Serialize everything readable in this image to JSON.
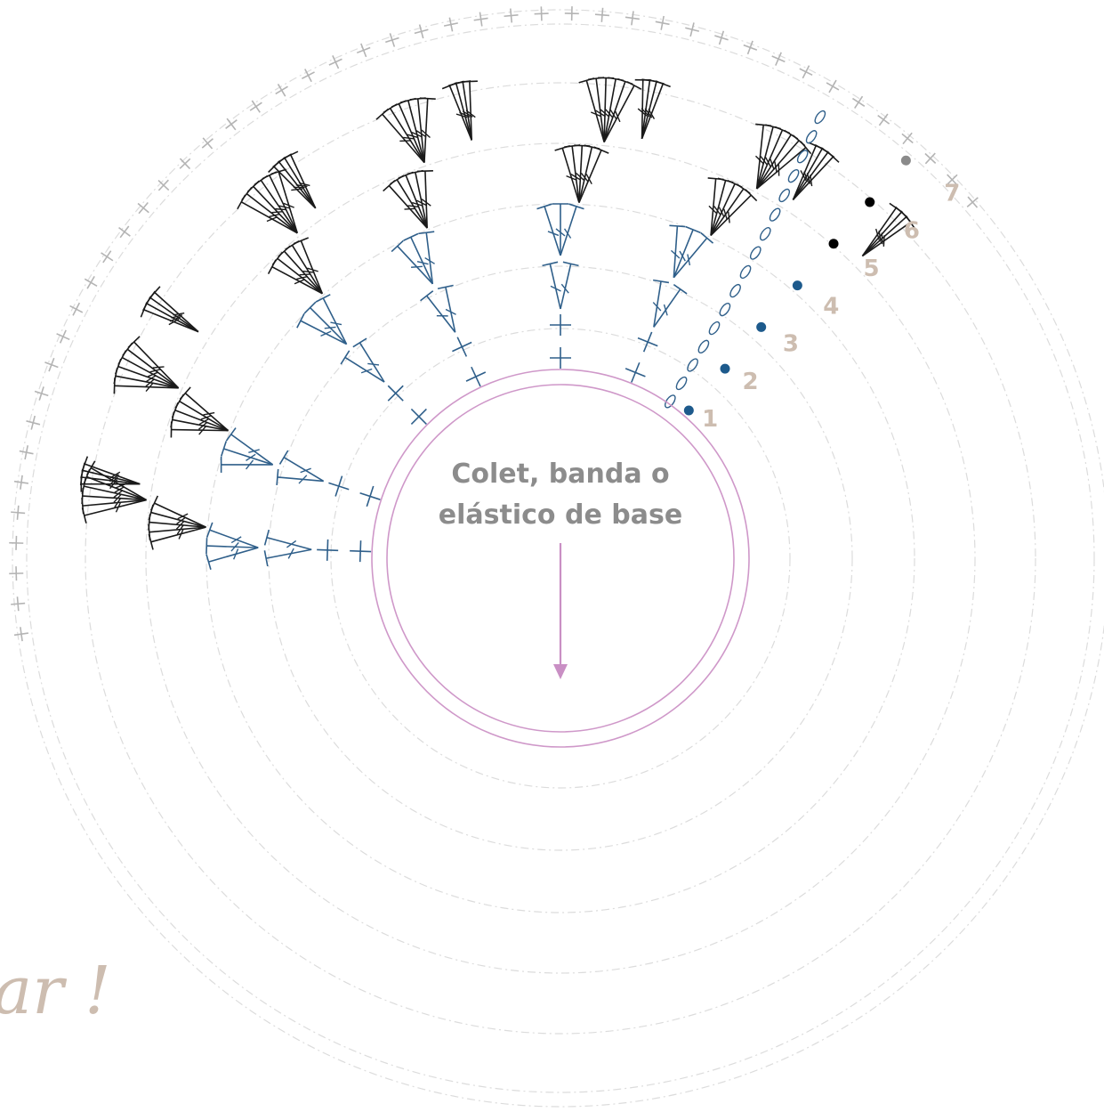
{
  "base": {
    "line1": "Colet, banda o",
    "line2": "elástico de base"
  },
  "rounds": [
    {
      "number": "1",
      "symbol": "single-crochet",
      "color": "#2f5f8a"
    },
    {
      "number": "2",
      "symbol": "single-crochet",
      "color": "#2f5f8a"
    },
    {
      "number": "3",
      "symbol": "single-crochet",
      "color": "#2f5f8a"
    },
    {
      "number": "4",
      "symbol": "double-crochet-fan",
      "color": "#2f5f8a"
    },
    {
      "number": "5",
      "symbol": "double-crochet-fan",
      "color": "#2f5f8a"
    },
    {
      "number": "6",
      "symbol": "double-crochet-fan",
      "color": "#1a1a1a"
    },
    {
      "number": "7",
      "symbol": "single-crochet-edging",
      "color": "#b4b4b4"
    }
  ],
  "legend_dots": [
    {
      "round": "1",
      "color": "#1d5a8c"
    },
    {
      "round": "2",
      "color": "#1d5a8c"
    },
    {
      "round": "3",
      "color": "#1d5a8c"
    },
    {
      "round": "4",
      "color": "#1d5a8c"
    },
    {
      "round": "5",
      "color": "#000000"
    },
    {
      "round": "6",
      "color": "#000000"
    },
    {
      "round": "7",
      "color": "#8a8a8a"
    }
  ],
  "fragment_text": "ar !",
  "colors": {
    "base_ring": "#cf98c9",
    "arrow": "#c98fc4",
    "inner_stitches": "#2f5f8a",
    "outer_stitches": "#1a1a1a",
    "edging": "#b4b4b4",
    "round_numbers": "#cdbdb0",
    "guide_circles": "#dcdcdc"
  },
  "icons": [
    "single-crochet-icon",
    "double-crochet-icon",
    "chain-stitch-icon",
    "slip-stitch-icon",
    "arrow-down-icon"
  ]
}
